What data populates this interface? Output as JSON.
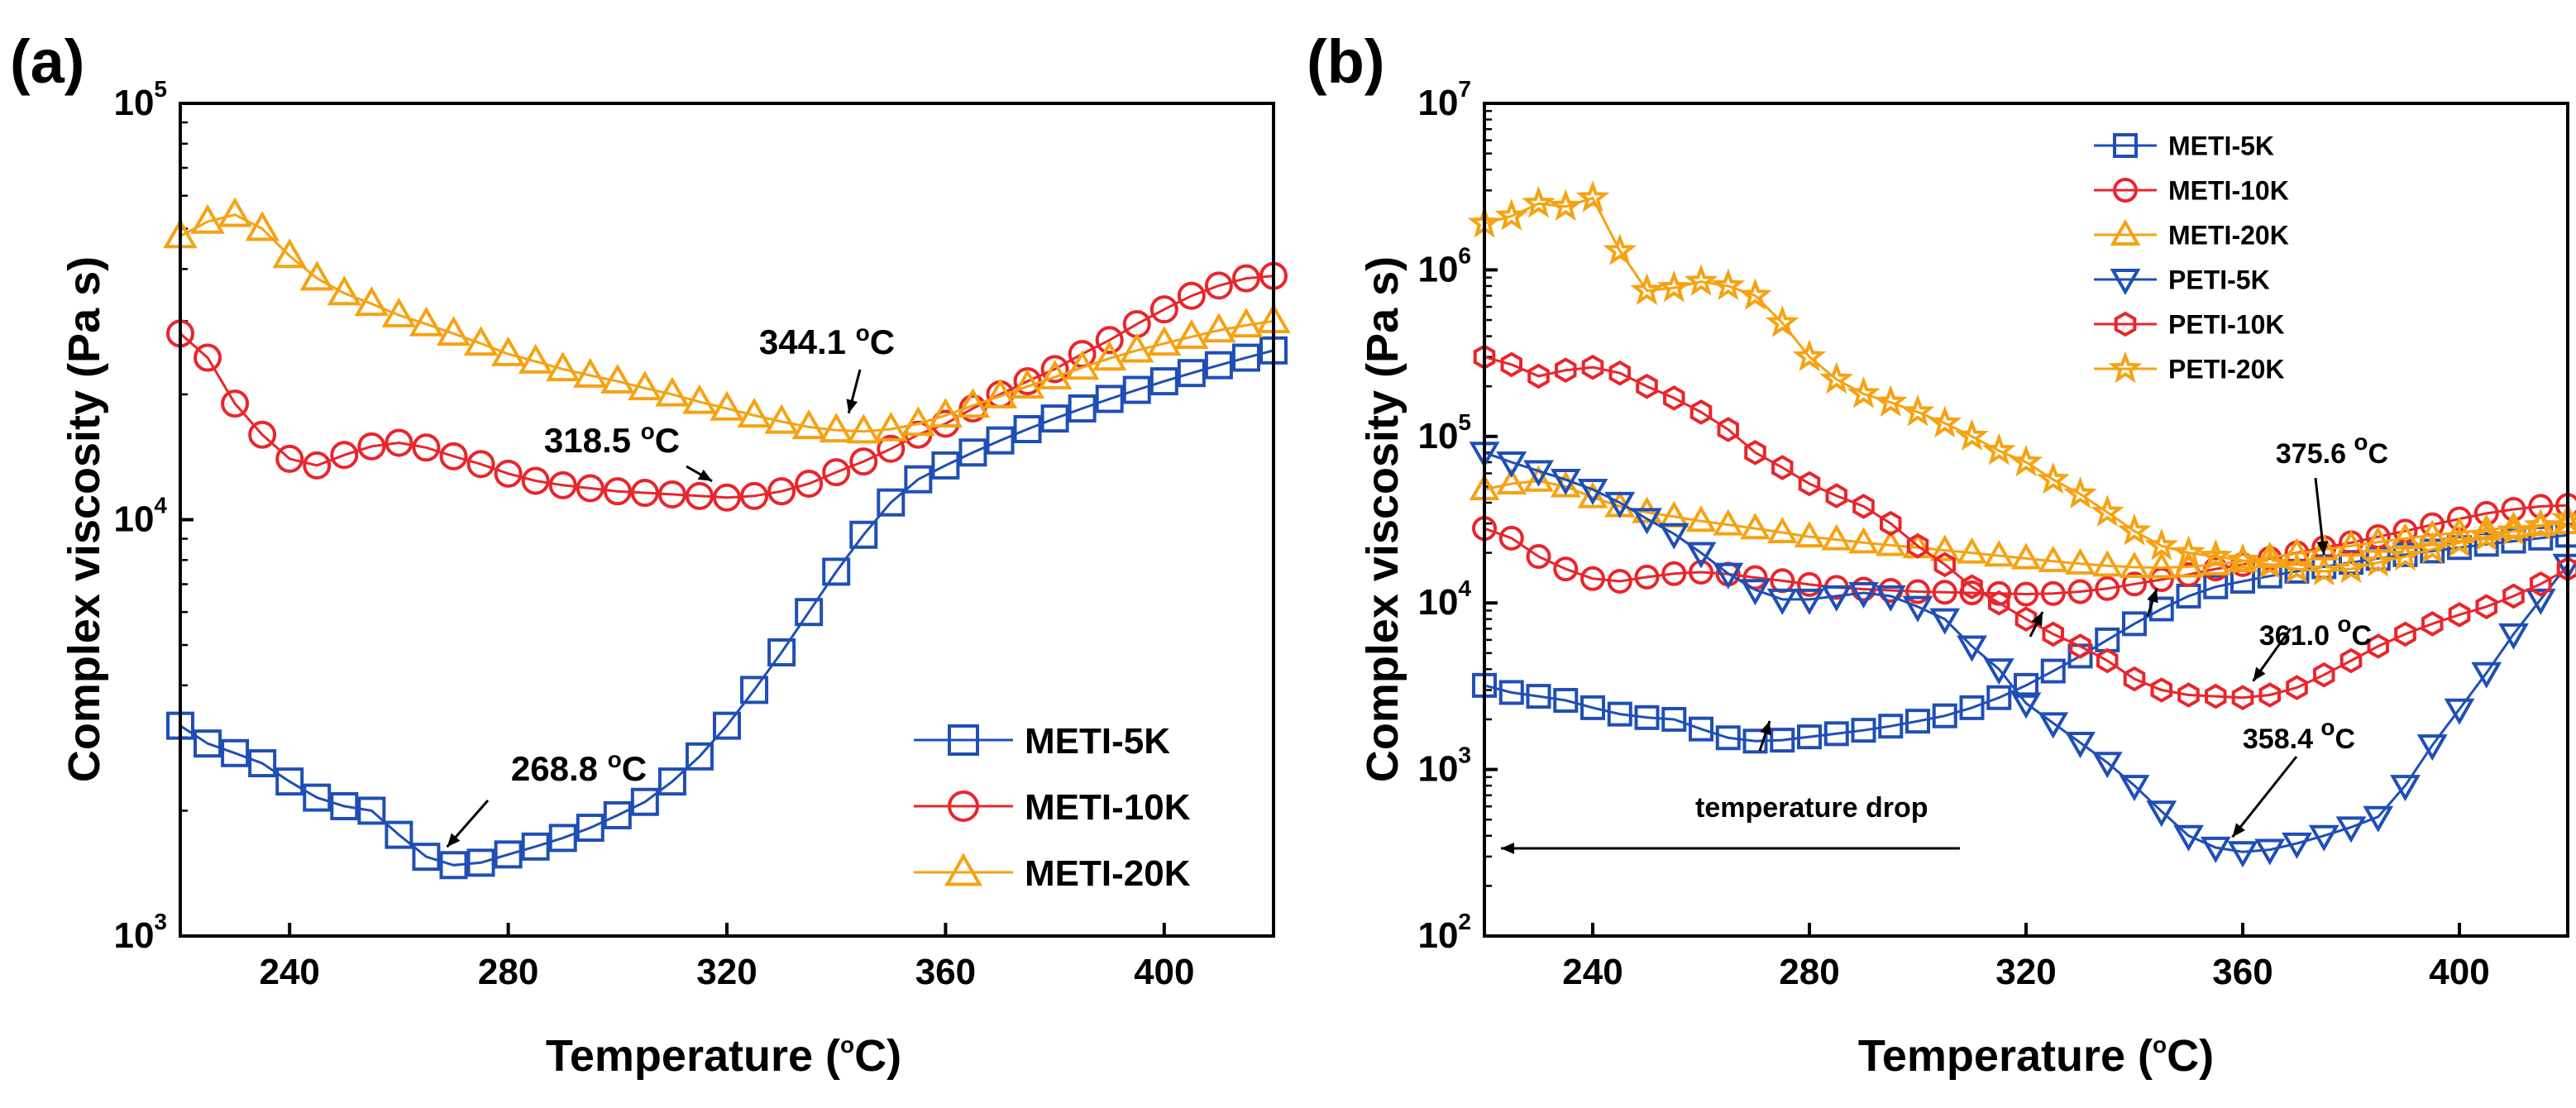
{
  "chart_data": [
    {
      "panel_label": "(a)",
      "type": "line",
      "xlabel": "Temperature (°C)",
      "xlabel_parts": {
        "pre": "Temperature (",
        "sup": "o",
        "post": "C)"
      },
      "ylabel": "Complex viscosity (Pa s)",
      "xlim": [
        220,
        420
      ],
      "ylim_log10": [
        3,
        5
      ],
      "yscale": "log",
      "x_ticks": [
        240,
        280,
        320,
        360,
        400
      ],
      "y_ticks": [
        {
          "base": "10",
          "exp": "3",
          "value": 1000
        },
        {
          "base": "10",
          "exp": "4",
          "value": 10000
        },
        {
          "base": "10",
          "exp": "5",
          "value": 100000
        }
      ],
      "legend_position": "lower-right",
      "series": [
        {
          "name": "METI-5K",
          "color": "#1f4fb5",
          "marker": "square",
          "x": [
            220,
            225,
            230,
            235,
            240,
            245,
            250,
            255,
            260,
            265,
            270,
            275,
            280,
            285,
            290,
            295,
            300,
            305,
            310,
            315,
            320,
            325,
            330,
            335,
            340,
            345,
            350,
            355,
            360,
            365,
            370,
            375,
            380,
            385,
            390,
            395,
            400,
            405,
            410,
            415,
            420
          ],
          "y": [
            3200,
            2900,
            2750,
            2600,
            2350,
            2150,
            2050,
            2000,
            1750,
            1550,
            1480,
            1500,
            1570,
            1640,
            1720,
            1820,
            1950,
            2100,
            2350,
            2700,
            3200,
            3900,
            4800,
            6000,
            7500,
            9200,
            11000,
            12500,
            13500,
            14500,
            15500,
            16500,
            17500,
            18500,
            19500,
            20500,
            21500,
            22500,
            23500,
            24500,
            25500
          ]
        },
        {
          "name": "METI-10K",
          "color": "#e8262b",
          "marker": "circle",
          "x": [
            220,
            225,
            230,
            235,
            240,
            245,
            250,
            255,
            260,
            265,
            270,
            275,
            280,
            285,
            290,
            295,
            300,
            305,
            310,
            315,
            320,
            325,
            330,
            335,
            340,
            345,
            350,
            355,
            360,
            365,
            370,
            375,
            380,
            385,
            390,
            395,
            400,
            405,
            410,
            415,
            420
          ],
          "y": [
            28000,
            24500,
            19000,
            16000,
            14000,
            13500,
            14300,
            15000,
            15300,
            14900,
            14200,
            13600,
            12900,
            12400,
            12100,
            11900,
            11700,
            11600,
            11500,
            11400,
            11300,
            11400,
            11700,
            12200,
            13000,
            13800,
            14800,
            16000,
            17000,
            18500,
            20000,
            21500,
            23000,
            25000,
            27000,
            29500,
            32000,
            34500,
            36500,
            38000,
            38500
          ]
        },
        {
          "name": "METI-20K",
          "color": "#f5a213",
          "marker": "triangle",
          "x": [
            220,
            225,
            230,
            235,
            240,
            245,
            250,
            255,
            260,
            265,
            270,
            275,
            280,
            285,
            290,
            295,
            300,
            305,
            310,
            315,
            320,
            325,
            330,
            335,
            340,
            345,
            350,
            355,
            360,
            365,
            370,
            375,
            380,
            385,
            390,
            395,
            400,
            405,
            410,
            415,
            420
          ],
          "y": [
            48000,
            52000,
            54000,
            50000,
            43000,
            38000,
            35000,
            33000,
            31000,
            29500,
            28000,
            26500,
            25000,
            24000,
            23000,
            22200,
            21500,
            20700,
            20000,
            19200,
            18500,
            17800,
            17200,
            16700,
            16400,
            16300,
            16500,
            17000,
            17800,
            18800,
            19800,
            20900,
            22000,
            23200,
            24400,
            25500,
            26500,
            27500,
            28500,
            29300,
            30000
          ]
        }
      ],
      "annotations": [
        {
          "text": "268.8 °C",
          "num": "268.8 ",
          "x": 268.8,
          "y": 1480
        },
        {
          "text": "318.5 °C",
          "num": "318.5 ",
          "x": 318.5,
          "y": 11300
        },
        {
          "text": "344.1 °C",
          "num": "344.1 ",
          "x": 344.1,
          "y": 16300
        }
      ]
    },
    {
      "panel_label": "(b)",
      "type": "line",
      "xlabel": "Temperature (°C)",
      "xlabel_parts": {
        "pre": "Temperature (",
        "sup": "o",
        "post": "C)"
      },
      "ylabel": "Complex viscosity (Pa s)",
      "xlim": [
        220,
        420
      ],
      "ylim_log10": [
        2,
        7
      ],
      "yscale": "log",
      "x_ticks": [
        240,
        280,
        320,
        360,
        400
      ],
      "y_ticks": [
        {
          "base": "10",
          "exp": "2",
          "value": 100
        },
        {
          "base": "10",
          "exp": "3",
          "value": 1000
        },
        {
          "base": "10",
          "exp": "4",
          "value": 10000
        },
        {
          "base": "10",
          "exp": "5",
          "value": 100000
        },
        {
          "base": "10",
          "exp": "6",
          "value": 1000000
        },
        {
          "base": "10",
          "exp": "7",
          "value": 10000000
        }
      ],
      "legend_position": "top-right",
      "series": [
        {
          "name": "METI-5K",
          "color": "#1f4fb5",
          "marker": "square",
          "x": [
            220,
            225,
            230,
            235,
            240,
            245,
            250,
            255,
            260,
            265,
            270,
            275,
            280,
            285,
            290,
            295,
            300,
            305,
            310,
            315,
            320,
            325,
            330,
            335,
            340,
            345,
            350,
            355,
            360,
            365,
            370,
            375,
            380,
            385,
            390,
            395,
            400,
            405,
            410,
            415,
            420
          ],
          "y": [
            3200,
            2900,
            2750,
            2600,
            2350,
            2150,
            2050,
            2000,
            1750,
            1550,
            1480,
            1500,
            1570,
            1640,
            1720,
            1820,
            1950,
            2100,
            2350,
            2700,
            3200,
            3900,
            4800,
            6000,
            7500,
            9200,
            11000,
            12500,
            13500,
            14500,
            15500,
            16500,
            17500,
            18500,
            19500,
            20500,
            21500,
            22500,
            23500,
            24500,
            25500
          ]
        },
        {
          "name": "METI-10K",
          "color": "#e8262b",
          "marker": "circle",
          "x": [
            220,
            225,
            230,
            235,
            240,
            245,
            250,
            255,
            260,
            265,
            270,
            275,
            280,
            285,
            290,
            295,
            300,
            305,
            310,
            315,
            320,
            325,
            330,
            335,
            340,
            345,
            350,
            355,
            360,
            365,
            370,
            375,
            380,
            385,
            390,
            395,
            400,
            405,
            410,
            415,
            420
          ],
          "y": [
            28000,
            24500,
            19000,
            16000,
            14000,
            13500,
            14300,
            15000,
            15300,
            14900,
            14200,
            13600,
            12900,
            12400,
            12100,
            11900,
            11700,
            11600,
            11500,
            11400,
            11300,
            11400,
            11700,
            12200,
            13000,
            13800,
            14800,
            16000,
            17000,
            18500,
            20000,
            21500,
            23000,
            25000,
            27000,
            29500,
            32000,
            34500,
            36500,
            38000,
            38500
          ]
        },
        {
          "name": "METI-20K",
          "color": "#f5a213",
          "marker": "triangle",
          "x": [
            220,
            225,
            230,
            235,
            240,
            245,
            250,
            255,
            260,
            265,
            270,
            275,
            280,
            285,
            290,
            295,
            300,
            305,
            310,
            315,
            320,
            325,
            330,
            335,
            340,
            345,
            350,
            355,
            360,
            365,
            370,
            375,
            380,
            385,
            390,
            395,
            400,
            405,
            410,
            415,
            420
          ],
          "y": [
            48000,
            52000,
            54000,
            50000,
            43000,
            38000,
            35000,
            33000,
            31000,
            29500,
            28000,
            26500,
            25000,
            24000,
            23000,
            22200,
            21500,
            20700,
            20000,
            19200,
            18500,
            17800,
            17200,
            16700,
            16400,
            16300,
            16500,
            17000,
            17800,
            18800,
            19800,
            20900,
            22000,
            23200,
            24400,
            25500,
            26500,
            27500,
            28500,
            29300,
            30000
          ]
        },
        {
          "name": "PETI-5K",
          "color": "#1f4fb5",
          "marker": "triangle-down",
          "x": [
            220,
            225,
            230,
            235,
            240,
            245,
            250,
            255,
            260,
            265,
            270,
            275,
            280,
            285,
            290,
            295,
            300,
            305,
            310,
            315,
            320,
            325,
            330,
            335,
            340,
            345,
            350,
            355,
            360,
            365,
            370,
            375,
            380,
            385,
            390,
            395,
            400,
            405,
            410,
            415,
            420
          ],
          "y": [
            80000,
            70000,
            62000,
            55000,
            48000,
            40000,
            32000,
            26000,
            20000,
            15000,
            12000,
            10500,
            10500,
            11000,
            11500,
            11000,
            9500,
            8000,
            5500,
            4000,
            2500,
            1900,
            1450,
            1100,
            800,
            560,
            400,
            340,
            320,
            330,
            360,
            400,
            450,
            520,
            800,
            1400,
            2300,
            3800,
            6500,
            10500,
            17000
          ]
        },
        {
          "name": "PETI-10K",
          "color": "#e8262b",
          "marker": "hexagon",
          "x": [
            220,
            225,
            230,
            235,
            240,
            245,
            250,
            255,
            260,
            265,
            270,
            275,
            280,
            285,
            290,
            295,
            300,
            305,
            310,
            315,
            320,
            325,
            330,
            335,
            340,
            345,
            350,
            355,
            360,
            365,
            370,
            375,
            380,
            385,
            390,
            395,
            400,
            405,
            410,
            415,
            420
          ],
          "y": [
            300000,
            270000,
            230000,
            250000,
            260000,
            240000,
            200000,
            170000,
            140000,
            110000,
            80000,
            65000,
            52000,
            44000,
            38000,
            30000,
            22000,
            17000,
            12500,
            10000,
            8000,
            6500,
            5500,
            4500,
            3500,
            3000,
            2800,
            2750,
            2700,
            2800,
            3100,
            3700,
            4500,
            5500,
            6500,
            7500,
            8500,
            9500,
            11000,
            13000,
            16000
          ]
        },
        {
          "name": "PETI-20K",
          "color": "#f5a213",
          "marker": "star",
          "x": [
            220,
            225,
            230,
            235,
            240,
            245,
            250,
            255,
            260,
            265,
            270,
            275,
            280,
            285,
            290,
            295,
            300,
            305,
            310,
            315,
            320,
            325,
            330,
            335,
            340,
            345,
            350,
            355,
            360,
            365,
            370,
            375,
            380,
            385,
            390,
            395,
            400,
            405,
            410,
            415,
            420
          ],
          "y": [
            1900000,
            2100000,
            2500000,
            2400000,
            2700000,
            1300000,
            750000,
            780000,
            850000,
            800000,
            700000,
            480000,
            300000,
            220000,
            180000,
            160000,
            140000,
            120000,
            100000,
            82000,
            70000,
            55000,
            45000,
            35000,
            27000,
            22000,
            20000,
            19000,
            18000,
            17000,
            16000,
            15500,
            16000,
            17500,
            19000,
            21000,
            23000,
            25000,
            27000,
            29000,
            32000
          ]
        }
      ],
      "annotations": [
        {
          "text": "375.6 °C",
          "num": "375.6 ",
          "x": 375.6,
          "y": 15500
        },
        {
          "text": "361.0 °C",
          "num": "361.0 ",
          "x": 361.0,
          "y": 2700
        },
        {
          "text": "358.4 °C",
          "num": "358.4 ",
          "x": 358.4,
          "y": 320
        },
        {
          "text": "temperature drop",
          "x": 0,
          "y": 0
        }
      ]
    }
  ]
}
